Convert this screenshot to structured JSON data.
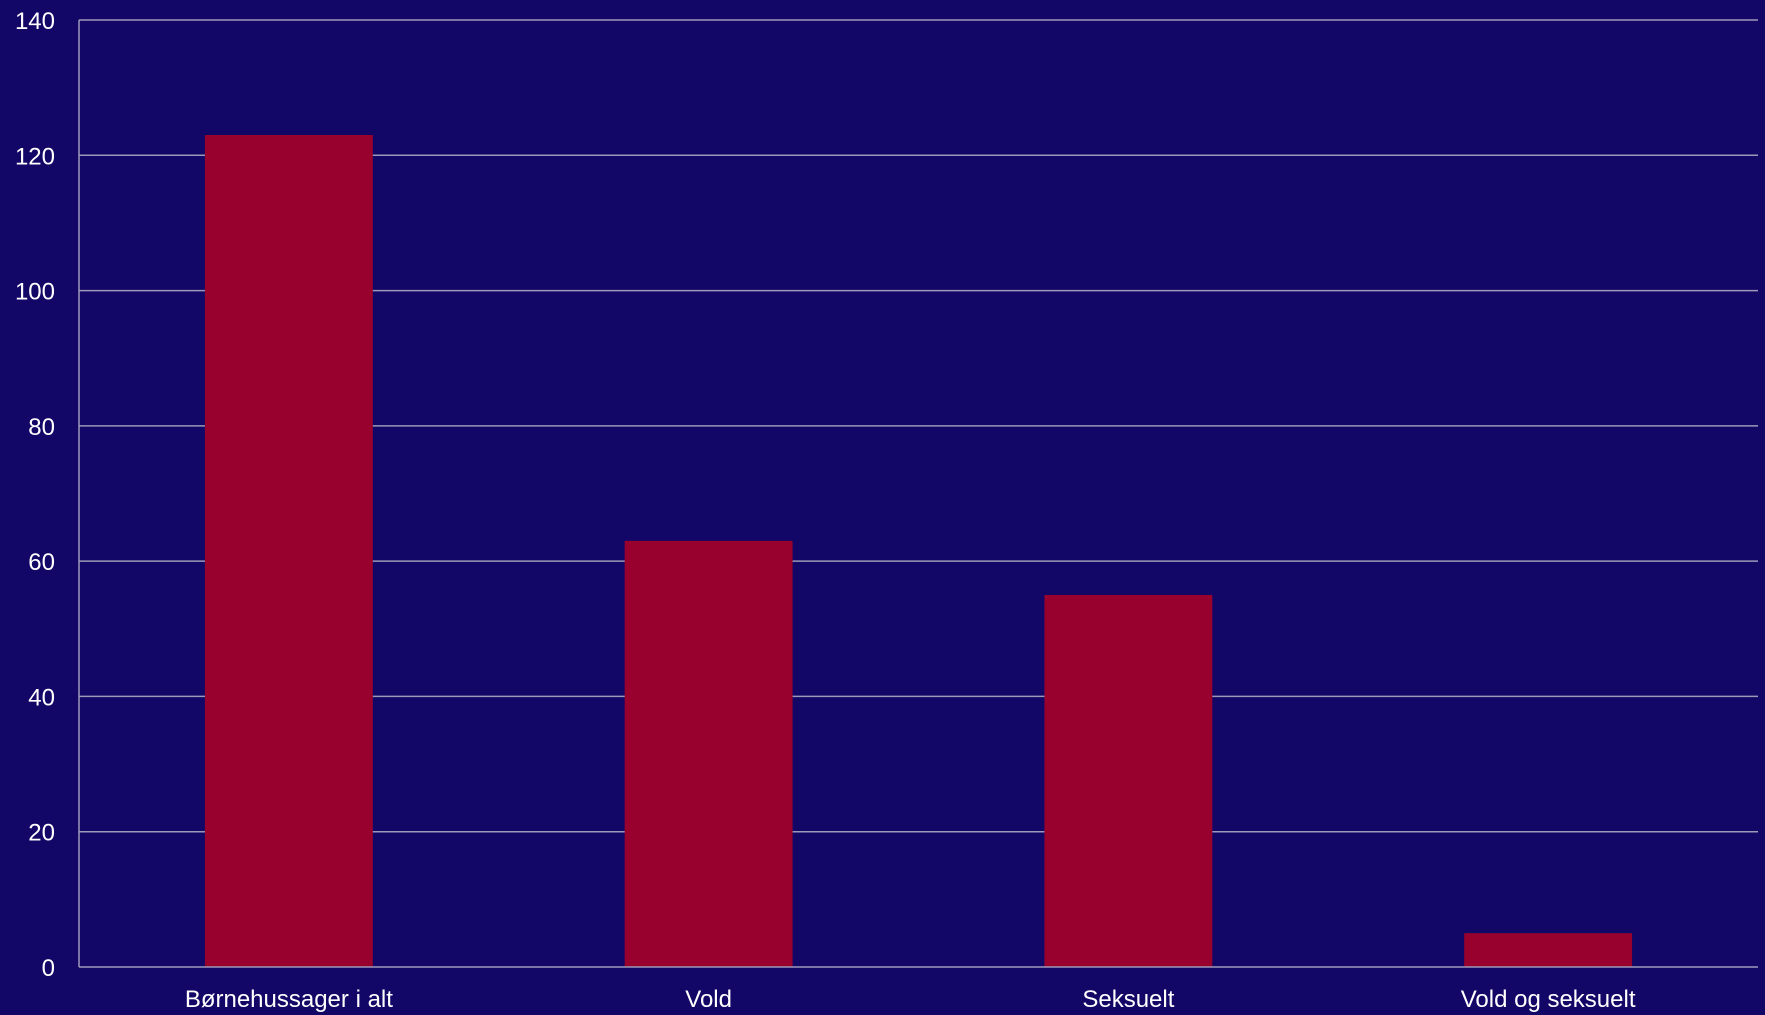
{
  "chart_data": {
    "type": "bar",
    "categories": [
      "Børnehussager i alt",
      "Vold",
      "Seksuelt",
      "Vold og seksuelt"
    ],
    "values": [
      123,
      63,
      55,
      5
    ],
    "ylim": [
      0,
      140
    ],
    "yticks": [
      0,
      20,
      40,
      60,
      80,
      100,
      120,
      140
    ],
    "grid": true,
    "colors": {
      "background": "#120666",
      "bar": "#98002e",
      "grid": "#9c9ab8",
      "text": "#ffffff"
    }
  }
}
